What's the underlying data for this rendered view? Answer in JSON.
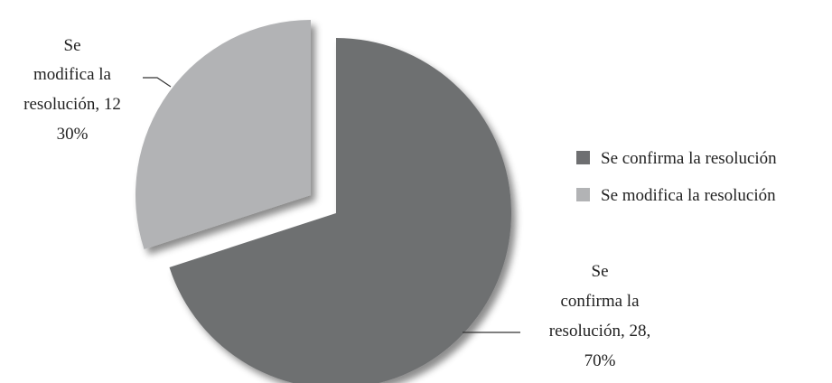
{
  "chart_data": {
    "type": "pie",
    "title": "",
    "exploded": true,
    "series": [
      {
        "name": "",
        "slices": [
          {
            "name": "Se confirma la resolución",
            "value": 28,
            "percent": "70%",
            "color": "#6e6f71",
            "label_lines": [
              "Se",
              "confirma la",
              "resolución, 28,",
              "70%"
            ]
          },
          {
            "name": "Se modifica la resolución",
            "value": 12,
            "percent": "30%",
            "color": "#b2b3b5",
            "label_lines": [
              "Se",
              "modifica la",
              "resolución, 12",
              "30%"
            ]
          }
        ]
      }
    ],
    "legend": {
      "position": "right",
      "entries": [
        "Se confirma la resolución",
        "Se modifica la resolución"
      ]
    }
  }
}
